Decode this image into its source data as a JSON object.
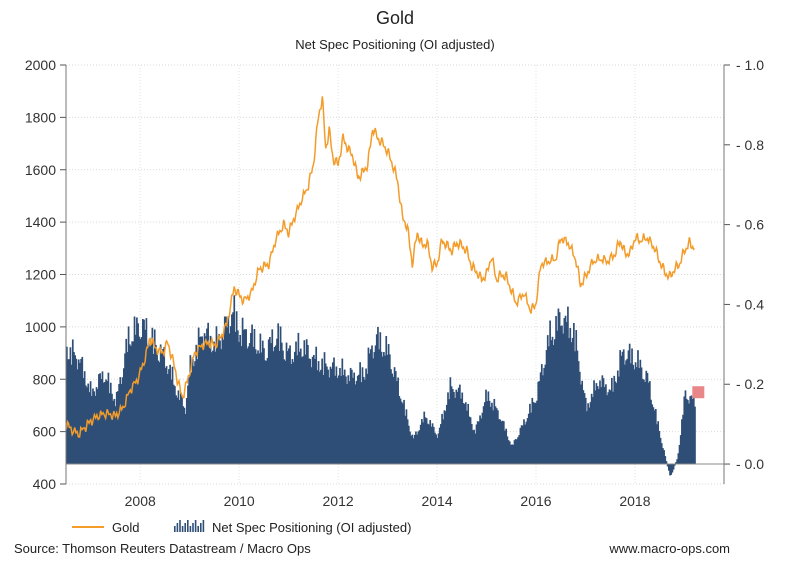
{
  "chart_data": {
    "type": "line+bar",
    "title": "Gold",
    "subtitle": "Net Spec Positioning (OI adjusted)",
    "x_range": [
      2006.5,
      2019.8
    ],
    "x_ticks": [
      "2008",
      "2010",
      "2012",
      "2014",
      "2016",
      "2018"
    ],
    "y_left": {
      "range": [
        400,
        2000
      ],
      "ticks": [
        "400",
        "600",
        "800",
        "1000",
        "1200",
        "1400",
        "1600",
        "1800",
        "2000"
      ]
    },
    "y_right": {
      "range": [
        -0.05,
        1.0
      ],
      "ticks": [
        "0.0",
        "0.2",
        "0.4",
        "0.6",
        "0.8",
        "1.0"
      ]
    },
    "grid": true,
    "legend_position": "bottom-left",
    "series": [
      {
        "name": "Gold",
        "axis": "left",
        "color": "#f39c2a",
        "style": "line",
        "points": [
          [
            2006.5,
            630
          ],
          [
            2006.6,
            610
          ],
          [
            2006.75,
            590
          ],
          [
            2006.9,
            620
          ],
          [
            2007.0,
            640
          ],
          [
            2007.15,
            660
          ],
          [
            2007.3,
            670
          ],
          [
            2007.5,
            660
          ],
          [
            2007.65,
            690
          ],
          [
            2007.8,
            760
          ],
          [
            2007.95,
            800
          ],
          [
            2008.1,
            880
          ],
          [
            2008.2,
            960
          ],
          [
            2008.3,
            920
          ],
          [
            2008.45,
            900
          ],
          [
            2008.55,
            940
          ],
          [
            2008.65,
            880
          ],
          [
            2008.75,
            800
          ],
          [
            2008.85,
            730
          ],
          [
            2008.95,
            790
          ],
          [
            2009.1,
            900
          ],
          [
            2009.25,
            930
          ],
          [
            2009.4,
            940
          ],
          [
            2009.5,
            930
          ],
          [
            2009.6,
            950
          ],
          [
            2009.75,
            1010
          ],
          [
            2009.9,
            1150
          ],
          [
            2010.0,
            1120
          ],
          [
            2010.1,
            1100
          ],
          [
            2010.25,
            1130
          ],
          [
            2010.4,
            1220
          ],
          [
            2010.5,
            1230
          ],
          [
            2010.6,
            1240
          ],
          [
            2010.75,
            1340
          ],
          [
            2010.9,
            1390
          ],
          [
            2011.0,
            1360
          ],
          [
            2011.1,
            1410
          ],
          [
            2011.25,
            1480
          ],
          [
            2011.4,
            1540
          ],
          [
            2011.5,
            1620
          ],
          [
            2011.6,
            1800
          ],
          [
            2011.68,
            1875
          ],
          [
            2011.75,
            1680
          ],
          [
            2011.82,
            1750
          ],
          [
            2011.9,
            1640
          ],
          [
            2012.0,
            1620
          ],
          [
            2012.1,
            1720
          ],
          [
            2012.2,
            1680
          ],
          [
            2012.3,
            1650
          ],
          [
            2012.4,
            1570
          ],
          [
            2012.5,
            1590
          ],
          [
            2012.6,
            1620
          ],
          [
            2012.7,
            1760
          ],
          [
            2012.8,
            1720
          ],
          [
            2012.9,
            1700
          ],
          [
            2013.0,
            1670
          ],
          [
            2013.1,
            1620
          ],
          [
            2013.2,
            1560
          ],
          [
            2013.3,
            1420
          ],
          [
            2013.4,
            1380
          ],
          [
            2013.5,
            1240
          ],
          [
            2013.6,
            1360
          ],
          [
            2013.7,
            1310
          ],
          [
            2013.8,
            1320
          ],
          [
            2013.9,
            1230
          ],
          [
            2014.0,
            1240
          ],
          [
            2014.1,
            1330
          ],
          [
            2014.2,
            1310
          ],
          [
            2014.3,
            1290
          ],
          [
            2014.4,
            1320
          ],
          [
            2014.5,
            1310
          ],
          [
            2014.6,
            1290
          ],
          [
            2014.7,
            1230
          ],
          [
            2014.8,
            1210
          ],
          [
            2014.9,
            1180
          ],
          [
            2015.0,
            1200
          ],
          [
            2015.1,
            1270
          ],
          [
            2015.2,
            1180
          ],
          [
            2015.3,
            1200
          ],
          [
            2015.4,
            1190
          ],
          [
            2015.5,
            1140
          ],
          [
            2015.6,
            1090
          ],
          [
            2015.75,
            1130
          ],
          [
            2015.9,
            1060
          ],
          [
            2016.0,
            1090
          ],
          [
            2016.1,
            1240
          ],
          [
            2016.25,
            1250
          ],
          [
            2016.4,
            1260
          ],
          [
            2016.5,
            1340
          ],
          [
            2016.65,
            1320
          ],
          [
            2016.8,
            1260
          ],
          [
            2016.9,
            1160
          ],
          [
            2017.0,
            1190
          ],
          [
            2017.15,
            1250
          ],
          [
            2017.3,
            1260
          ],
          [
            2017.45,
            1250
          ],
          [
            2017.6,
            1280
          ],
          [
            2017.7,
            1330
          ],
          [
            2017.8,
            1280
          ],
          [
            2017.9,
            1280
          ],
          [
            2018.0,
            1340
          ],
          [
            2018.1,
            1330
          ],
          [
            2018.25,
            1340
          ],
          [
            2018.4,
            1300
          ],
          [
            2018.5,
            1250
          ],
          [
            2018.6,
            1210
          ],
          [
            2018.7,
            1190
          ],
          [
            2018.8,
            1220
          ],
          [
            2018.9,
            1240
          ],
          [
            2019.0,
            1290
          ],
          [
            2019.1,
            1320
          ],
          [
            2019.2,
            1300
          ]
        ]
      },
      {
        "name": "Net Spec Positioning (OI adjusted)",
        "axis": "right",
        "color": "#2e4e77",
        "style": "bar",
        "points": [
          [
            2006.5,
            0.33
          ],
          [
            2006.75,
            0.3
          ],
          [
            2007.0,
            0.2
          ],
          [
            2007.25,
            0.26
          ],
          [
            2007.5,
            0.18
          ],
          [
            2007.75,
            0.36
          ],
          [
            2008.0,
            0.4
          ],
          [
            2008.25,
            0.35
          ],
          [
            2008.5,
            0.3
          ],
          [
            2008.75,
            0.2
          ],
          [
            2008.9,
            0.16
          ],
          [
            2009.0,
            0.28
          ],
          [
            2009.25,
            0.38
          ],
          [
            2009.5,
            0.34
          ],
          [
            2009.75,
            0.4
          ],
          [
            2009.85,
            0.44
          ],
          [
            2010.0,
            0.38
          ],
          [
            2010.25,
            0.36
          ],
          [
            2010.5,
            0.32
          ],
          [
            2010.75,
            0.37
          ],
          [
            2011.0,
            0.31
          ],
          [
            2011.25,
            0.34
          ],
          [
            2011.5,
            0.3
          ],
          [
            2011.75,
            0.28
          ],
          [
            2012.0,
            0.27
          ],
          [
            2012.25,
            0.25
          ],
          [
            2012.5,
            0.26
          ],
          [
            2012.75,
            0.36
          ],
          [
            2013.0,
            0.32
          ],
          [
            2013.25,
            0.2
          ],
          [
            2013.5,
            0.07
          ],
          [
            2013.75,
            0.14
          ],
          [
            2014.0,
            0.08
          ],
          [
            2014.25,
            0.22
          ],
          [
            2014.5,
            0.2
          ],
          [
            2014.75,
            0.09
          ],
          [
            2015.0,
            0.2
          ],
          [
            2015.25,
            0.14
          ],
          [
            2015.5,
            0.05
          ],
          [
            2015.75,
            0.12
          ],
          [
            2016.0,
            0.2
          ],
          [
            2016.25,
            0.36
          ],
          [
            2016.5,
            0.42
          ],
          [
            2016.75,
            0.38
          ],
          [
            2017.0,
            0.16
          ],
          [
            2017.25,
            0.24
          ],
          [
            2017.5,
            0.21
          ],
          [
            2017.75,
            0.32
          ],
          [
            2018.0,
            0.3
          ],
          [
            2018.25,
            0.24
          ],
          [
            2018.5,
            0.08
          ],
          [
            2018.7,
            -0.04
          ],
          [
            2018.85,
            0.02
          ],
          [
            2019.0,
            0.2
          ],
          [
            2019.2,
            0.18
          ]
        ]
      }
    ],
    "legend": [
      {
        "label": "Gold",
        "color": "#f39c2a",
        "marker": "line"
      },
      {
        "label": "Net Spec Positioning (OI adjusted)",
        "color": "#2e4e77",
        "marker": "bars"
      }
    ],
    "source": "Source: Thomson Reuters Datastream / Macro Ops",
    "website": "www.macro-ops.com"
  }
}
